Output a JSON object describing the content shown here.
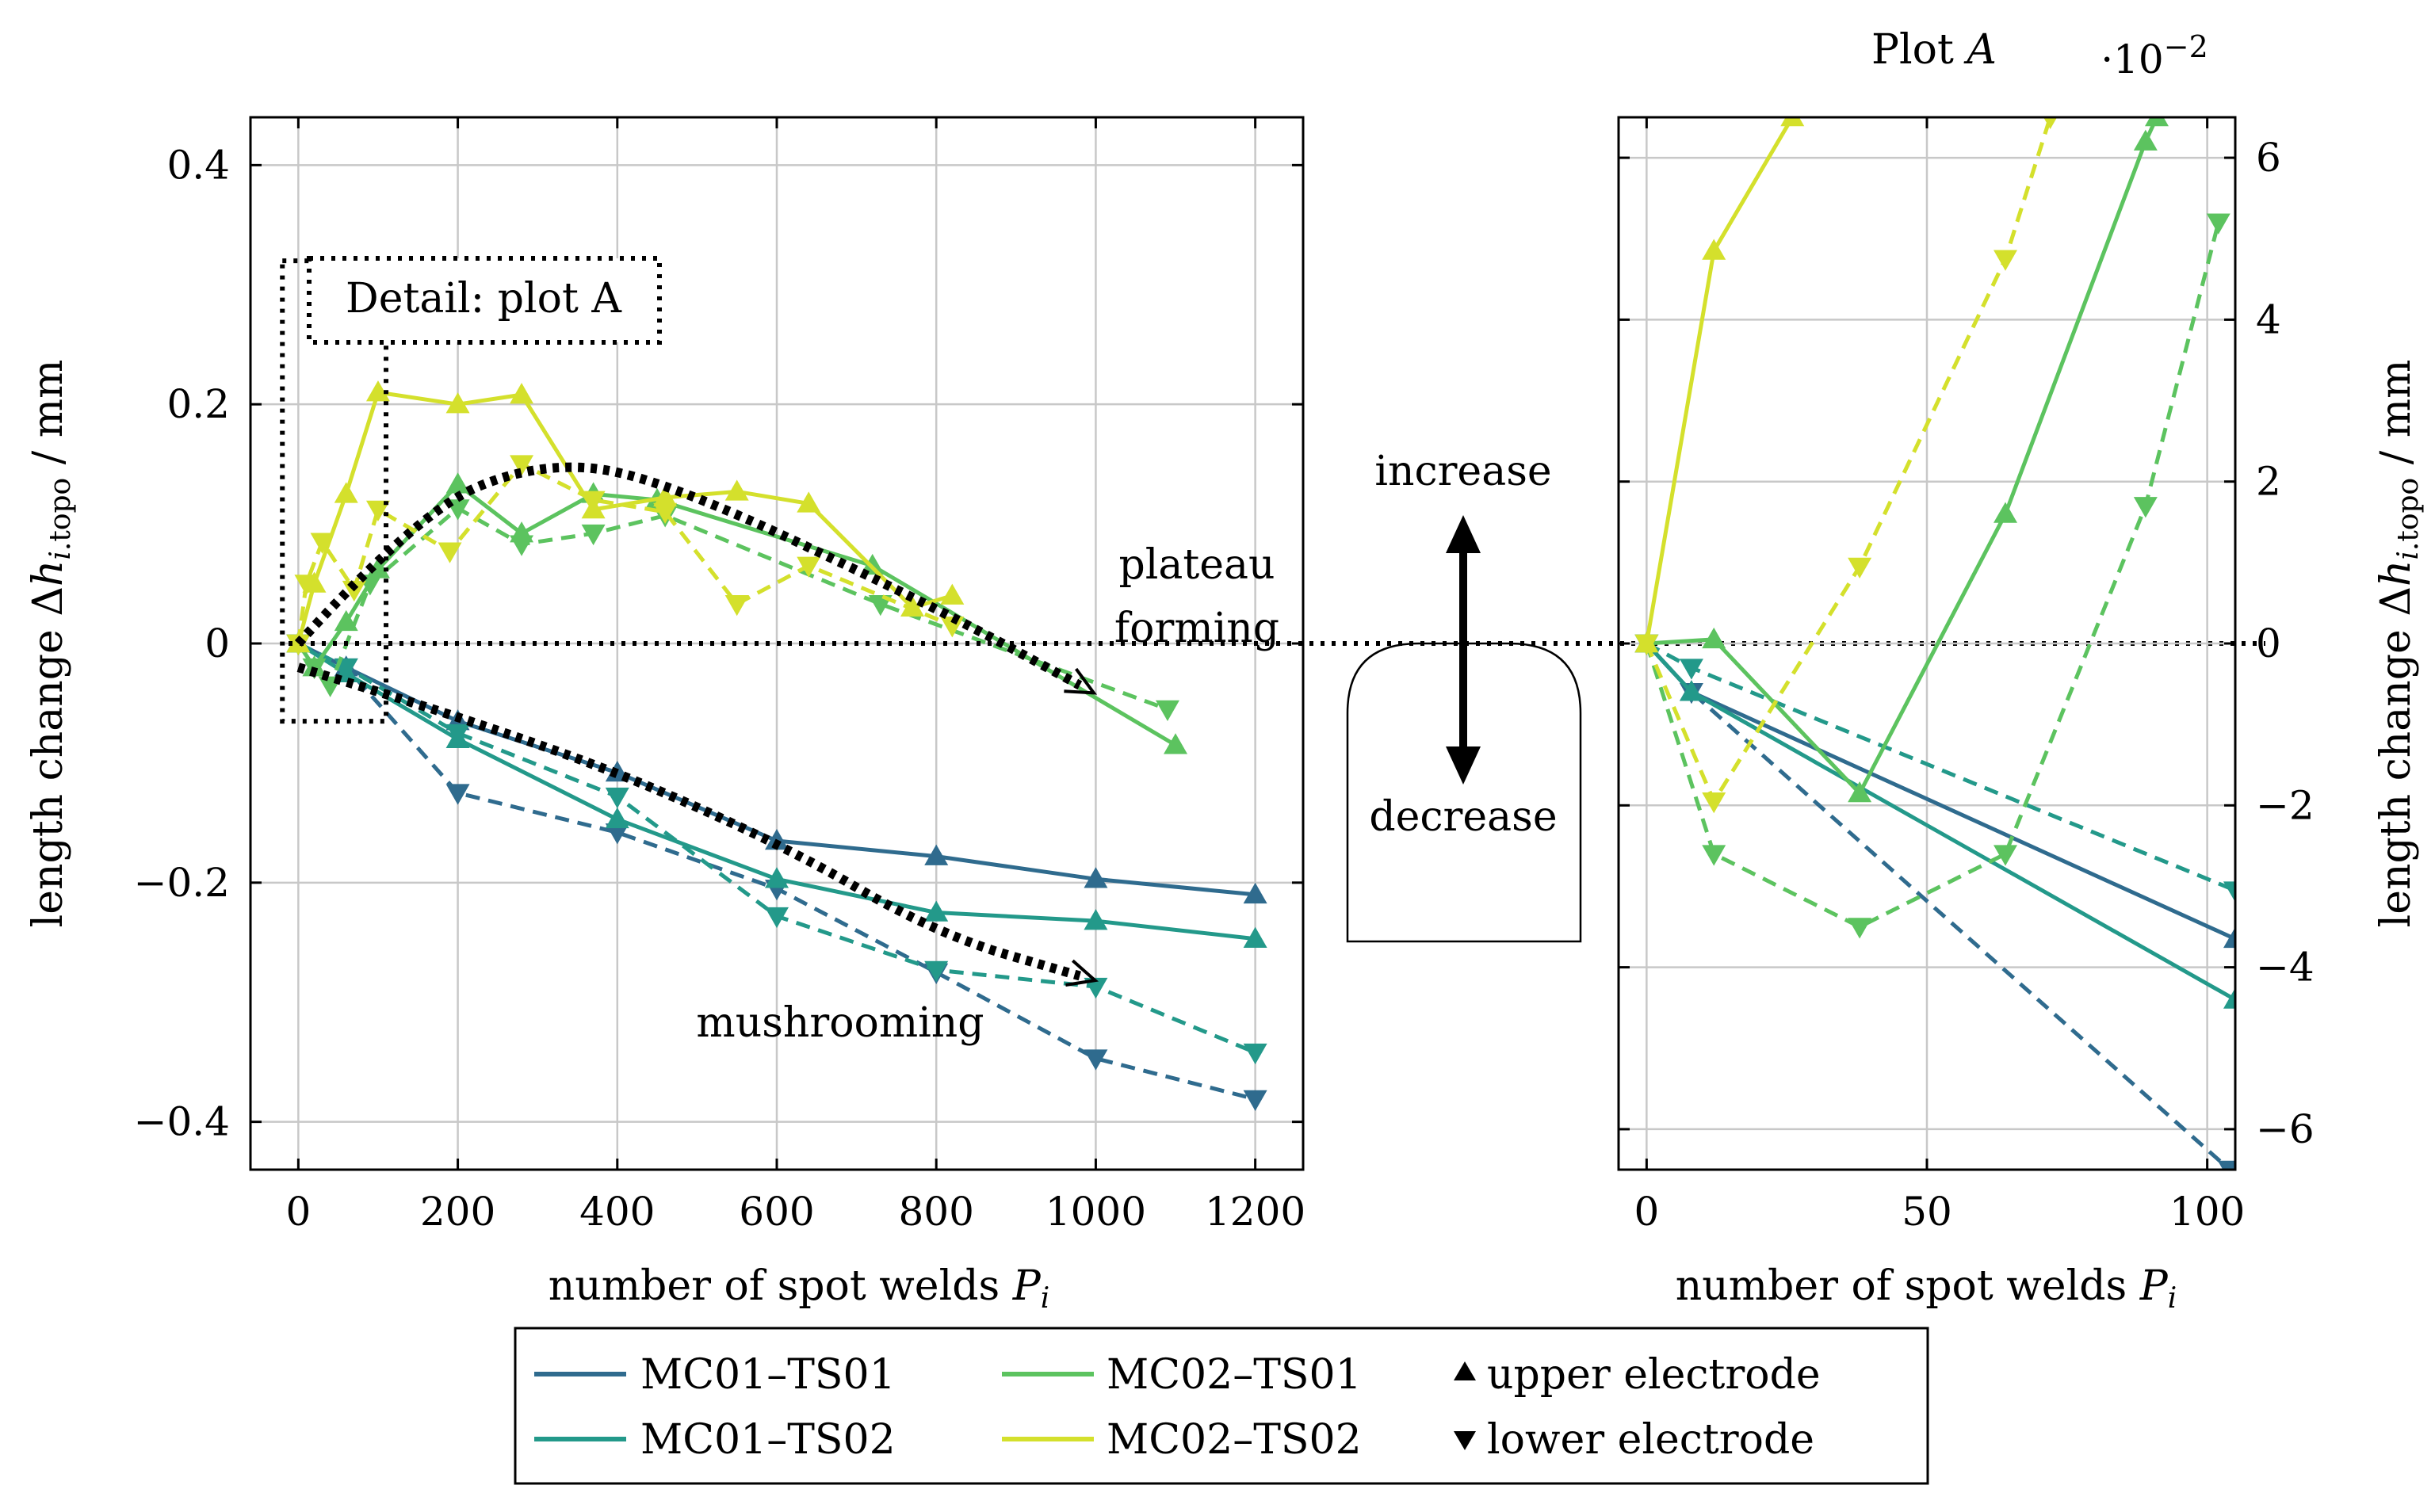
{
  "chart_data": [
    {
      "type": "line",
      "panel": "main",
      "xlabel": "number of spot welds P_i",
      "ylabel": "length change Δh_i.topo / mm",
      "xlim": [
        -60,
        1260
      ],
      "ylim": [
        -0.44,
        0.44
      ],
      "xticks": [
        0,
        200,
        400,
        600,
        800,
        1000,
        1200
      ],
      "xtick_labels": [
        "0",
        "200",
        "400",
        "600",
        "800",
        "1000",
        "1200"
      ],
      "yticks": [
        -0.4,
        -0.2,
        0,
        0.2,
        0.4
      ],
      "ytick_labels": [
        "−0.4",
        "−0.2",
        "0",
        "0.2",
        "0.4"
      ],
      "series": [
        {
          "name": "MC01–TS01 upper",
          "color": "#2f6b8e",
          "dash": "solid",
          "marker": "up",
          "x": [
            0,
            60,
            200,
            400,
            600,
            800,
            1000,
            1200
          ],
          "y": [
            0,
            -0.02,
            -0.065,
            -0.108,
            -0.165,
            -0.178,
            -0.197,
            -0.21
          ]
        },
        {
          "name": "MC01–TS01 lower",
          "color": "#2f6b8e",
          "dash": "dashed",
          "marker": "down",
          "x": [
            0,
            60,
            200,
            400,
            600,
            800,
            1000,
            1200
          ],
          "y": [
            0,
            -0.02,
            -0.125,
            -0.158,
            -0.205,
            -0.275,
            -0.347,
            -0.381
          ]
        },
        {
          "name": "MC01–TS02 upper",
          "color": "#23998a",
          "dash": "solid",
          "marker": "up",
          "x": [
            0,
            60,
            200,
            400,
            600,
            800,
            1000,
            1200
          ],
          "y": [
            0,
            -0.025,
            -0.08,
            -0.147,
            -0.197,
            -0.225,
            -0.232,
            -0.247
          ]
        },
        {
          "name": "MC01–TS02 lower",
          "color": "#23998a",
          "dash": "dashed",
          "marker": "down",
          "x": [
            0,
            60,
            200,
            400,
            600,
            800,
            1000,
            1200
          ],
          "y": [
            0,
            -0.02,
            -0.075,
            -0.128,
            -0.228,
            -0.273,
            -0.287,
            -0.342
          ]
        },
        {
          "name": "MC02–TS01 upper",
          "color": "#5cc35f",
          "dash": "solid",
          "marker": "up",
          "x": [
            0,
            20,
            60,
            100,
            200,
            280,
            370,
            450,
            720,
            1100
          ],
          "y": [
            0,
            -0.02,
            0.018,
            0.062,
            0.133,
            0.092,
            0.125,
            0.12,
            0.065,
            -0.085
          ]
        },
        {
          "name": "MC02–TS01 lower",
          "color": "#5cc35f",
          "dash": "dashed",
          "marker": "down",
          "x": [
            0,
            20,
            40,
            90,
            200,
            280,
            370,
            460,
            730,
            1090
          ],
          "y": [
            0,
            -0.02,
            -0.035,
            0.05,
            0.113,
            0.083,
            0.092,
            0.107,
            0.033,
            -0.055
          ]
        },
        {
          "name": "MC02–TS02 upper",
          "color": "#d4e02c",
          "dash": "solid",
          "marker": "up",
          "x": [
            0,
            20,
            60,
            100,
            200,
            280,
            370,
            460,
            550,
            640,
            770,
            820
          ],
          "y": [
            0,
            0.05,
            0.125,
            0.21,
            0.2,
            0.208,
            0.112,
            0.122,
            0.127,
            0.117,
            0.03,
            0.04
          ]
        },
        {
          "name": "MC02–TS02 lower",
          "color": "#d4e02c",
          "dash": "dashed",
          "marker": "down",
          "x": [
            0,
            10,
            30,
            70,
            100,
            190,
            280,
            370,
            460,
            550,
            640,
            820
          ],
          "y": [
            0,
            0.05,
            0.085,
            0.045,
            0.112,
            0.077,
            0.15,
            0.12,
            0.11,
            0.033,
            0.065,
            0.015
          ]
        }
      ],
      "trend_arrows": [
        {
          "name": "plateau-forming-trend",
          "x": [
            0,
            150,
            300,
            450,
            800,
            980
          ],
          "y": [
            0,
            0.11,
            0.152,
            0.14,
            0.03,
            -0.035
          ]
        },
        {
          "name": "mushrooming-trend",
          "x": [
            0,
            300,
            600,
            800,
            980
          ],
          "y": [
            -0.02,
            -0.08,
            -0.165,
            -0.243,
            -0.278
          ]
        }
      ],
      "detail_box": {
        "x": [
          -20,
          110
        ],
        "y": [
          -0.065,
          0.32
        ],
        "label": "Detail: plot A"
      },
      "annotations": [
        "plateau forming",
        "mushrooming"
      ]
    },
    {
      "type": "line",
      "panel": "detail",
      "title": "Plot A",
      "scale_label": "·10⁻²",
      "xlabel": "number of spot welds P_i",
      "ylabel": "length change Δh_i.topo / mm",
      "xlim": [
        -5,
        105
      ],
      "ylim": [
        -6.5,
        6.5
      ],
      "xticks": [
        0,
        50,
        100
      ],
      "xtick_labels": [
        "0",
        "50",
        "100"
      ],
      "yticks": [
        -6,
        -4,
        -2,
        0,
        2,
        4,
        6
      ],
      "ytick_labels": [
        "−6",
        "−4",
        "−2",
        "0",
        "2",
        "4",
        "6"
      ],
      "series": [
        {
          "name": "MC01–TS01 upper",
          "color": "#2f6b8e",
          "dash": "solid",
          "marker": "up",
          "x": [
            0,
            8,
            105
          ],
          "y": [
            0,
            -0.6,
            -3.65
          ]
        },
        {
          "name": "MC01–TS01 lower",
          "color": "#2f6b8e",
          "dash": "dashed",
          "marker": "down",
          "x": [
            0,
            8,
            104
          ],
          "y": [
            0,
            -0.6,
            -6.5
          ]
        },
        {
          "name": "MC01–TS02 upper",
          "color": "#23998a",
          "dash": "solid",
          "marker": "up",
          "x": [
            0,
            8,
            105
          ],
          "y": [
            0,
            -0.6,
            -4.4
          ]
        },
        {
          "name": "MC01–TS02 lower",
          "color": "#23998a",
          "dash": "dashed",
          "marker": "down",
          "x": [
            0,
            8,
            105
          ],
          "y": [
            0,
            -0.3,
            -3.05
          ]
        },
        {
          "name": "MC02–TS01 upper",
          "color": "#5cc35f",
          "dash": "solid",
          "marker": "up",
          "x": [
            0,
            12,
            38,
            64,
            89,
            91
          ],
          "y": [
            0,
            0.05,
            -1.85,
            1.6,
            6.2,
            6.5
          ]
        },
        {
          "name": "MC02–TS01 lower",
          "color": "#5cc35f",
          "dash": "dashed",
          "marker": "down",
          "x": [
            0,
            12,
            38,
            64,
            89,
            102
          ],
          "y": [
            0,
            -2.6,
            -3.5,
            -2.6,
            1.7,
            5.2
          ]
        },
        {
          "name": "MC02–TS02 upper",
          "color": "#d4e02c",
          "dash": "solid",
          "marker": "up",
          "x": [
            0,
            12,
            26
          ],
          "y": [
            0,
            4.85,
            6.5
          ]
        },
        {
          "name": "MC02–TS02 lower",
          "color": "#d4e02c",
          "dash": "dashed",
          "marker": "down",
          "x": [
            0,
            12,
            38,
            64,
            72
          ],
          "y": [
            0,
            -1.95,
            0.95,
            4.75,
            6.5
          ]
        }
      ]
    }
  ],
  "middle_schematic": {
    "increase_label": "increase",
    "decrease_label": "decrease"
  },
  "legend": {
    "entries": [
      {
        "label": "MC01–TS01",
        "color": "#2f6b8e"
      },
      {
        "label": "MC02–TS01",
        "color": "#5cc35f"
      },
      {
        "label": "MC01–TS02",
        "color": "#23998a"
      },
      {
        "label": "MC02–TS02",
        "color": "#d4e02c"
      }
    ],
    "upper_label": "upper electrode",
    "lower_label": "lower electrode"
  }
}
